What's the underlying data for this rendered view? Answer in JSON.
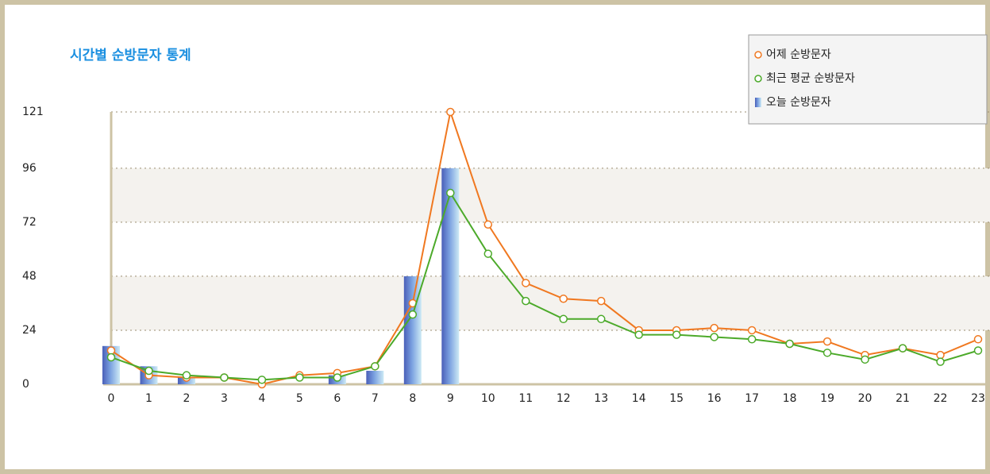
{
  "chart_data": {
    "type": "bar-line",
    "title": "시간별 순방문자 통계",
    "categories": [
      "0",
      "1",
      "2",
      "3",
      "4",
      "5",
      "6",
      "7",
      "8",
      "9",
      "10",
      "11",
      "12",
      "13",
      "14",
      "15",
      "16",
      "17",
      "18",
      "19",
      "20",
      "21",
      "22",
      "23"
    ],
    "series": [
      {
        "name": "어제 순방문자",
        "type": "line",
        "color": "#f07820",
        "values": [
          15,
          4,
          3,
          3,
          0,
          4,
          5,
          8,
          36,
          121,
          71,
          45,
          38,
          37,
          24,
          24,
          25,
          24,
          18,
          19,
          13,
          16,
          13,
          20
        ]
      },
      {
        "name": "최근 평균 순방문자",
        "type": "line",
        "color": "#4caa2a",
        "values": [
          12,
          6,
          4,
          3,
          2,
          3,
          3,
          8,
          31,
          85,
          58,
          37,
          29,
          29,
          22,
          22,
          21,
          20,
          18,
          14,
          11,
          16,
          10,
          15
        ]
      },
      {
        "name": "오늘 순방문자",
        "type": "bar",
        "color": "#5a78c8",
        "values": [
          17,
          8,
          3,
          0,
          0,
          0,
          4,
          6,
          48,
          96,
          null,
          null,
          null,
          null,
          null,
          null,
          null,
          null,
          null,
          null,
          null,
          null,
          null,
          null
        ]
      }
    ],
    "ylim": [
      0,
      121
    ],
    "yticks": [
      0,
      24,
      48,
      72,
      96,
      121
    ],
    "grid": true,
    "legend": "top-right"
  }
}
